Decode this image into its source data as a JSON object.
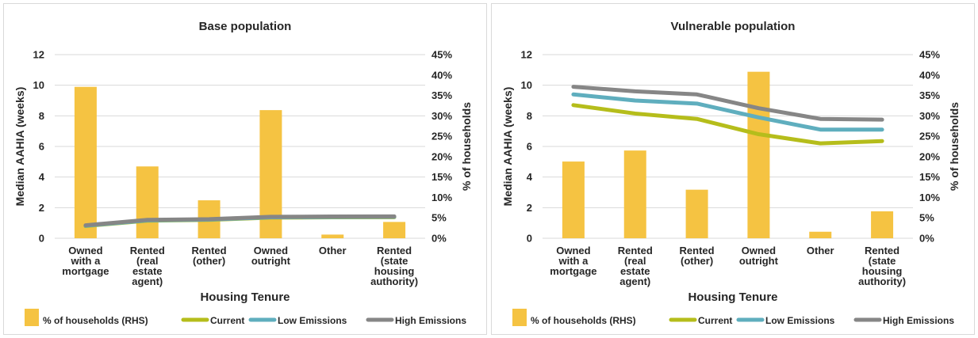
{
  "colors": {
    "bar": "#F5C342",
    "current": "#B5BD1B",
    "low": "#5FAEBE",
    "high": "#868686",
    "grid": "#D9D9D9"
  },
  "chart_data": [
    {
      "type": "bar",
      "title": "Base population",
      "xlabel": "Housing Tenure",
      "ylabel": "Median AAHIA (weeks)",
      "y2label": "% of households",
      "ylim": [
        0,
        12
      ],
      "y2lim": [
        0,
        0.45
      ],
      "yticks": [
        "0",
        "2",
        "4",
        "6",
        "8",
        "10",
        "12"
      ],
      "y2ticks": [
        "0%",
        "5%",
        "10%",
        "15%",
        "20%",
        "25%",
        "30%",
        "35%",
        "40%",
        "45%"
      ],
      "categories": [
        [
          "Owned",
          "with a",
          "mortgage"
        ],
        [
          "Rented",
          "(real",
          "estate",
          "agent)"
        ],
        [
          "Rented",
          "(other)"
        ],
        [
          "Owned",
          "outright"
        ],
        [
          "Other"
        ],
        [
          "Rented",
          "(state",
          "housing",
          "authority)"
        ]
      ],
      "series": [
        {
          "name": "% of households (RHS)",
          "kind": "bar",
          "axis": "right",
          "values": [
            0.371,
            0.176,
            0.093,
            0.314,
            0.009,
            0.04
          ]
        },
        {
          "name": "Current",
          "kind": "line",
          "values": [
            0.8,
            1.15,
            1.2,
            1.35,
            1.37,
            1.38
          ]
        },
        {
          "name": "Low Emissions",
          "kind": "line",
          "values": [
            0.82,
            1.17,
            1.22,
            1.37,
            1.39,
            1.4
          ]
        },
        {
          "name": "High Emissions",
          "kind": "line",
          "values": [
            0.85,
            1.2,
            1.25,
            1.4,
            1.42,
            1.43
          ]
        }
      ],
      "legend": "bottom"
    },
    {
      "type": "bar",
      "title": "Vulnerable population",
      "xlabel": "Housing Tenure",
      "ylabel": "Median AAHIA (weeks)",
      "y2label": "% of households",
      "ylim": [
        0,
        12
      ],
      "y2lim": [
        0,
        0.45
      ],
      "yticks": [
        "0",
        "2",
        "4",
        "6",
        "8",
        "10",
        "12"
      ],
      "y2ticks": [
        "0%",
        "5%",
        "10%",
        "15%",
        "20%",
        "25%",
        "30%",
        "35%",
        "40%",
        "45%"
      ],
      "categories": [
        [
          "Owned",
          "with a",
          "mortgage"
        ],
        [
          "Rented",
          "(real",
          "estate",
          "agent)"
        ],
        [
          "Rented",
          "(other)"
        ],
        [
          "Owned",
          "outright"
        ],
        [
          "Other"
        ],
        [
          "Rented",
          "(state",
          "housing",
          "authority)"
        ]
      ],
      "series": [
        {
          "name": "% of households (RHS)",
          "kind": "bar",
          "axis": "right",
          "values": [
            0.188,
            0.215,
            0.119,
            0.408,
            0.016,
            0.066
          ]
        },
        {
          "name": "Current",
          "kind": "line",
          "values": [
            8.7,
            8.15,
            7.8,
            6.8,
            6.2,
            6.35
          ]
        },
        {
          "name": "Low Emissions",
          "kind": "line",
          "values": [
            9.4,
            9.0,
            8.8,
            7.9,
            7.1,
            7.1
          ]
        },
        {
          "name": "High Emissions",
          "kind": "line",
          "values": [
            9.9,
            9.6,
            9.4,
            8.5,
            7.8,
            7.75
          ]
        }
      ],
      "legend": "bottom"
    }
  ]
}
